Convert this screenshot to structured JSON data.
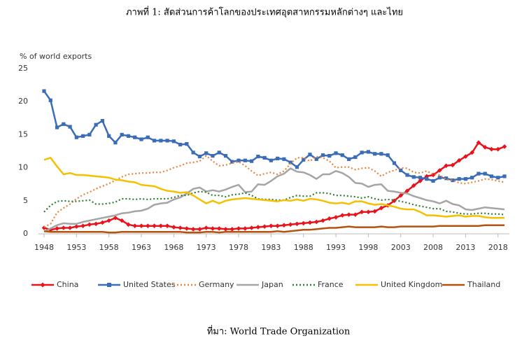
{
  "chart_data": {
    "type": "line",
    "title": "ภาพที่ 1: สัดส่วนการค้าโลกของประเทศอุตสาหกรรมหลักต่างๆ และไทย",
    "y_label": "% of world exports",
    "source": "ที่มา: World Trade Organization",
    "x": [
      1948,
      1949,
      1950,
      1951,
      1952,
      1953,
      1954,
      1955,
      1956,
      1957,
      1958,
      1959,
      1960,
      1961,
      1962,
      1963,
      1964,
      1965,
      1966,
      1967,
      1968,
      1969,
      1970,
      1971,
      1972,
      1973,
      1974,
      1975,
      1976,
      1977,
      1978,
      1979,
      1980,
      1981,
      1982,
      1983,
      1984,
      1985,
      1986,
      1987,
      1988,
      1989,
      1990,
      1991,
      1992,
      1993,
      1994,
      1995,
      1996,
      1997,
      1998,
      1999,
      2000,
      2001,
      2002,
      2003,
      2004,
      2005,
      2006,
      2007,
      2008,
      2009,
      2010,
      2011,
      2012,
      2013,
      2014,
      2015,
      2016,
      2017,
      2018,
      2019
    ],
    "xlim": [
      1948,
      2019
    ],
    "xticks": [
      1948,
      1953,
      1958,
      1963,
      1968,
      1973,
      1978,
      1983,
      1988,
      1993,
      1998,
      2003,
      2008,
      2013,
      2018
    ],
    "ylim": [
      0,
      25
    ],
    "yticks": [
      0,
      5,
      10,
      15,
      20,
      25
    ],
    "grid": false,
    "legend": "bottom",
    "series": [
      {
        "name": "China",
        "color": "#e8131b",
        "marker": "diamond",
        "style": "solid",
        "values": [
          0.9,
          0.6,
          0.8,
          0.9,
          0.9,
          1.1,
          1.2,
          1.4,
          1.5,
          1.7,
          2.0,
          2.4,
          2.0,
          1.4,
          1.2,
          1.2,
          1.2,
          1.2,
          1.2,
          1.2,
          1.0,
          0.9,
          0.8,
          0.7,
          0.7,
          0.9,
          0.8,
          0.8,
          0.7,
          0.7,
          0.8,
          0.8,
          0.9,
          1.0,
          1.1,
          1.2,
          1.2,
          1.3,
          1.4,
          1.5,
          1.6,
          1.7,
          1.8,
          2.0,
          2.3,
          2.5,
          2.8,
          2.9,
          2.9,
          3.3,
          3.3,
          3.4,
          3.9,
          4.3,
          5.0,
          5.8,
          6.5,
          7.3,
          8.0,
          8.7,
          8.9,
          9.6,
          10.3,
          10.4,
          11.1,
          11.7,
          12.3,
          13.8,
          13.1,
          12.8,
          12.8,
          13.2
        ]
      },
      {
        "name": "United States",
        "color": "#3b6cb7",
        "marker": "square",
        "style": "solid",
        "values": [
          21.6,
          20.2,
          16.1,
          16.6,
          16.2,
          14.6,
          14.8,
          15.0,
          16.5,
          17.1,
          14.8,
          13.8,
          15.0,
          14.8,
          14.6,
          14.3,
          14.6,
          14.1,
          14.1,
          14.1,
          14.0,
          13.5,
          13.6,
          12.3,
          11.7,
          12.2,
          11.8,
          12.3,
          11.8,
          10.9,
          11.1,
          11.1,
          11.0,
          11.7,
          11.5,
          11.1,
          11.4,
          11.3,
          10.8,
          10.1,
          11.2,
          12.0,
          11.3,
          11.9,
          11.8,
          12.2,
          11.9,
          11.3,
          11.6,
          12.3,
          12.4,
          12.1,
          12.1,
          11.9,
          10.7,
          9.6,
          8.9,
          8.6,
          8.5,
          8.3,
          8.0,
          8.5,
          8.4,
          8.1,
          8.3,
          8.3,
          8.5,
          9.1,
          9.1,
          8.7,
          8.5,
          8.7
        ]
      },
      {
        "name": "Germany",
        "color": "#e8843a",
        "marker": "none",
        "style": "dotted",
        "values": [
          1.0,
          1.5,
          3.2,
          3.9,
          4.5,
          5.3,
          5.9,
          6.3,
          6.8,
          7.2,
          7.6,
          8.1,
          8.6,
          9.0,
          9.1,
          9.2,
          9.2,
          9.3,
          9.3,
          9.6,
          10.0,
          10.3,
          10.7,
          10.8,
          11.0,
          11.8,
          11.0,
          10.3,
          10.4,
          10.7,
          10.9,
          10.3,
          9.5,
          8.8,
          9.1,
          9.3,
          9.0,
          9.5,
          10.6,
          11.5,
          11.5,
          11.0,
          11.7,
          11.5,
          11.0,
          10.0,
          10.1,
          10.1,
          9.7,
          9.9,
          10.0,
          9.5,
          8.7,
          9.3,
          9.6,
          10.0,
          9.9,
          9.3,
          9.2,
          9.5,
          9.0,
          8.9,
          8.2,
          8.1,
          7.7,
          7.6,
          7.8,
          8.0,
          8.3,
          8.2,
          8.0,
          7.8
        ]
      },
      {
        "name": "Japan",
        "color": "#a5a5a5",
        "marker": "none",
        "style": "solid",
        "values": [
          0.3,
          0.8,
          1.3,
          1.6,
          1.5,
          1.5,
          1.8,
          2.0,
          2.2,
          2.4,
          2.6,
          2.8,
          3.1,
          3.2,
          3.4,
          3.5,
          3.8,
          4.4,
          4.6,
          4.7,
          5.2,
          5.5,
          6.1,
          6.8,
          7.0,
          6.4,
          6.6,
          6.4,
          6.7,
          7.1,
          7.4,
          6.3,
          6.4,
          7.5,
          7.4,
          8.0,
          8.7,
          9.1,
          9.9,
          9.4,
          9.3,
          8.9,
          8.3,
          9.0,
          9.0,
          9.5,
          9.2,
          8.6,
          7.7,
          7.6,
          7.1,
          7.4,
          7.5,
          6.5,
          6.4,
          6.2,
          6.1,
          5.7,
          5.4,
          5.1,
          4.9,
          4.6,
          5.0,
          4.5,
          4.3,
          3.7,
          3.6,
          3.8,
          4.0,
          3.9,
          3.8,
          3.7
        ]
      },
      {
        "name": "France",
        "color": "#2e7d32",
        "marker": "none",
        "style": "dotted",
        "values": [
          3.3,
          4.3,
          4.9,
          5.0,
          4.9,
          4.9,
          5.0,
          5.1,
          4.5,
          4.5,
          4.6,
          4.8,
          5.3,
          5.3,
          5.2,
          5.3,
          5.2,
          5.3,
          5.3,
          5.3,
          5.5,
          5.8,
          5.8,
          6.2,
          6.4,
          6.3,
          5.8,
          5.8,
          5.6,
          5.9,
          6.0,
          6.2,
          5.8,
          5.3,
          5.2,
          5.2,
          5.1,
          5.1,
          5.5,
          5.8,
          5.7,
          5.7,
          6.2,
          6.2,
          6.1,
          5.8,
          5.8,
          5.7,
          5.6,
          5.4,
          5.6,
          5.3,
          5.1,
          5.2,
          5.1,
          4.9,
          4.7,
          4.4,
          4.2,
          4.0,
          3.8,
          3.8,
          3.4,
          3.3,
          3.1,
          3.0,
          3.0,
          3.1,
          3.1,
          3.0,
          3.0,
          2.9
        ]
      },
      {
        "name": "United Kingdom",
        "color": "#f5c000",
        "marker": "none",
        "style": "solid",
        "values": [
          11.2,
          11.5,
          10.2,
          9.0,
          9.2,
          8.9,
          8.9,
          8.8,
          8.7,
          8.6,
          8.5,
          8.2,
          8.1,
          7.9,
          7.8,
          7.4,
          7.3,
          7.2,
          6.8,
          6.5,
          6.4,
          6.2,
          6.3,
          5.8,
          5.2,
          4.6,
          5.0,
          4.6,
          5.0,
          5.2,
          5.3,
          5.4,
          5.3,
          5.2,
          5.1,
          5.0,
          4.9,
          5.1,
          5.0,
          5.2,
          5.0,
          5.3,
          5.2,
          5.0,
          4.7,
          4.6,
          4.7,
          4.5,
          4.9,
          4.9,
          4.6,
          4.4,
          4.5,
          4.3,
          4.1,
          3.8,
          3.7,
          3.7,
          3.3,
          2.8,
          2.8,
          2.7,
          2.6,
          2.7,
          2.8,
          2.6,
          2.7,
          2.7,
          2.5,
          2.4,
          2.4,
          2.4
        ]
      },
      {
        "name": "Thailand",
        "color": "#b5530e",
        "marker": "none",
        "style": "solid",
        "values": [
          0.4,
          0.3,
          0.3,
          0.3,
          0.3,
          0.3,
          0.3,
          0.3,
          0.3,
          0.3,
          0.2,
          0.2,
          0.3,
          0.3,
          0.3,
          0.3,
          0.3,
          0.3,
          0.3,
          0.3,
          0.3,
          0.3,
          0.2,
          0.2,
          0.2,
          0.3,
          0.3,
          0.2,
          0.3,
          0.3,
          0.3,
          0.3,
          0.3,
          0.3,
          0.3,
          0.3,
          0.4,
          0.3,
          0.4,
          0.5,
          0.6,
          0.6,
          0.7,
          0.8,
          0.9,
          0.9,
          1.0,
          1.1,
          1.0,
          1.0,
          1.0,
          1.0,
          1.1,
          1.0,
          1.0,
          1.1,
          1.1,
          1.1,
          1.1,
          1.1,
          1.1,
          1.2,
          1.2,
          1.2,
          1.2,
          1.2,
          1.2,
          1.2,
          1.3,
          1.3,
          1.3,
          1.3
        ]
      }
    ]
  }
}
